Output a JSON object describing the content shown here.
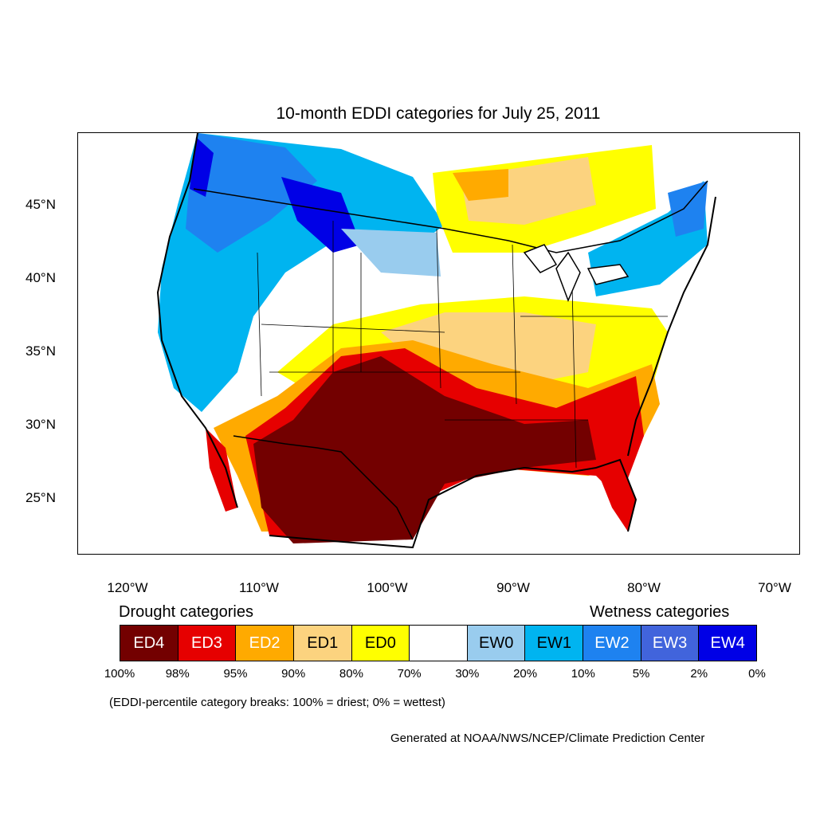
{
  "title": "10-month EDDI categories for July 25, 2011",
  "lat_labels": [
    "45°N",
    "40°N",
    "35°N",
    "30°N",
    "25°N"
  ],
  "lon_labels": [
    "120°W",
    "110°W",
    "100°W",
    "90°W",
    "80°W",
    "70°W"
  ],
  "legend": {
    "drought_heading": "Drought categories",
    "wetness_heading": "Wetness categories",
    "categories": [
      {
        "label": "ED4",
        "color": "#730000",
        "text_color": "#ffffff"
      },
      {
        "label": "ED3",
        "color": "#e60000",
        "text_color": "#ffffff"
      },
      {
        "label": "ED2",
        "color": "#ffaa00",
        "text_color": "#ffffff"
      },
      {
        "label": "ED1",
        "color": "#fcd37f",
        "text_color": "#000000"
      },
      {
        "label": "ED0",
        "color": "#ffff00",
        "text_color": "#000000"
      },
      {
        "label": "",
        "color": "#ffffff",
        "text_color": "#000000"
      },
      {
        "label": "EW0",
        "color": "#99ccee",
        "text_color": "#000000"
      },
      {
        "label": "EW1",
        "color": "#00b4f0",
        "text_color": "#000000"
      },
      {
        "label": "EW2",
        "color": "#1e82f0",
        "text_color": "#ffffff"
      },
      {
        "label": "EW3",
        "color": "#4164dc",
        "text_color": "#ffffff"
      },
      {
        "label": "EW4",
        "color": "#0000e6",
        "text_color": "#ffffff"
      }
    ],
    "percentiles": [
      "100%",
      "98%",
      "95%",
      "90%",
      "80%",
      "70%",
      "30%",
      "20%",
      "10%",
      "5%",
      "2%",
      "0%"
    ]
  },
  "note": "(EDDI-percentile category breaks: 100% = driest; 0% = wettest)",
  "credit": "Generated at NOAA/NWS/NCEP/Climate Prediction Center"
}
